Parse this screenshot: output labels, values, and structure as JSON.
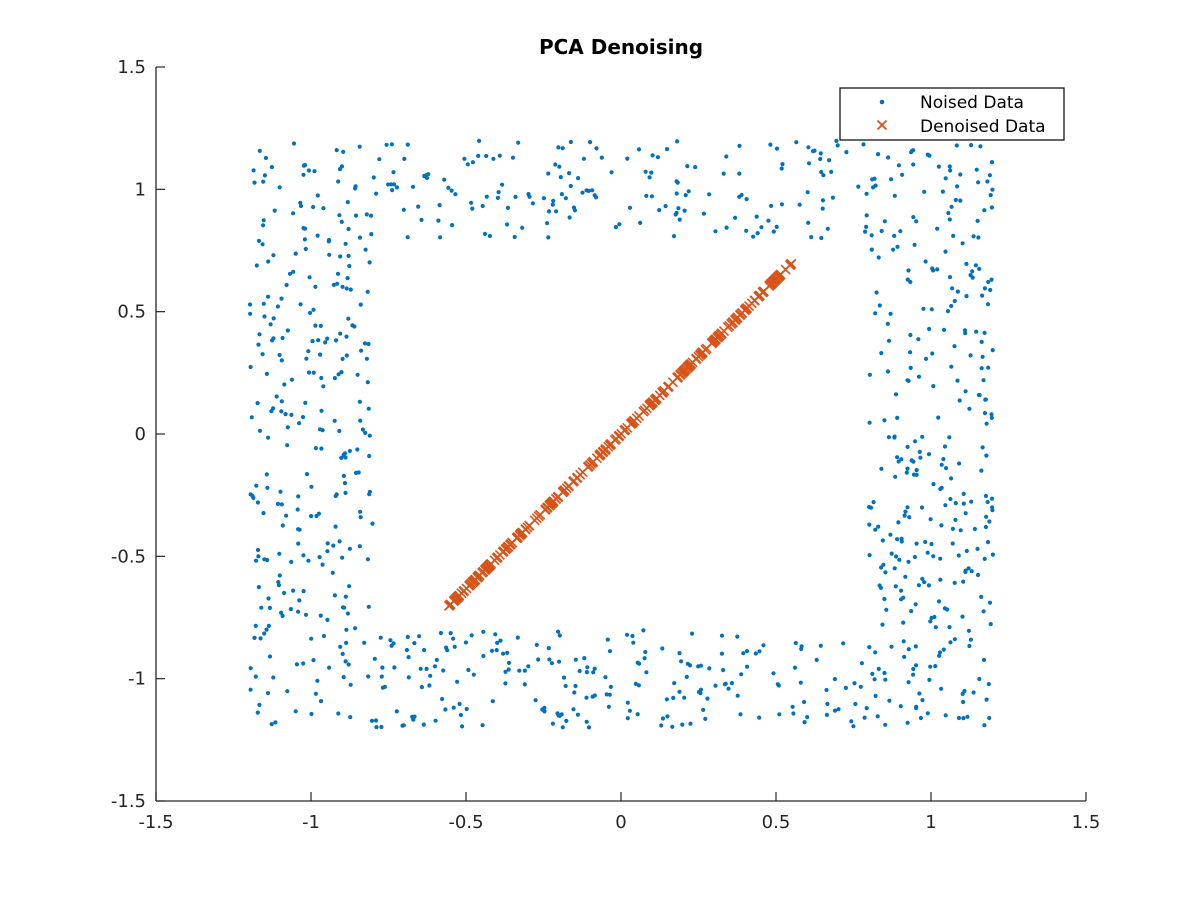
{
  "chart_data": {
    "type": "scatter",
    "title": "PCA Denoising",
    "xlabel": "",
    "ylabel": "",
    "xlim": [
      -1.5,
      1.5
    ],
    "ylim": [
      -1.5,
      1.5
    ],
    "grid": false,
    "legend_position": "top-right",
    "x_ticks": [
      -1.5,
      -1,
      -0.5,
      0,
      0.5,
      1,
      1.5
    ],
    "x_tick_labels": [
      "-1.5",
      "-1",
      "-0.5",
      "0",
      "0.5",
      "1",
      "1.5"
    ],
    "y_ticks": [
      -1.5,
      -1,
      -0.5,
      0,
      0.5,
      1,
      1.5
    ],
    "y_tick_labels": [
      "-1.5",
      "-1",
      "-0.5",
      "0",
      "0.5",
      "1",
      "1.5"
    ],
    "series": [
      {
        "name": "Noised Data",
        "marker": "dot",
        "color": "#0072BD",
        "description": "uniform noise in a square ring: |x|,|y| <= 1.2 with max(|x|,|y|) >= 0.8",
        "ring_outer": 1.2,
        "ring_inner": 0.8,
        "approx_count": 1000
      },
      {
        "name": "Denoised Data",
        "marker": "x",
        "color": "#D95319",
        "description": "points projected onto first principal component",
        "direction": [
          0.62,
          0.785
        ],
        "t_range": [
          -0.9,
          0.9
        ],
        "approx_count": 300
      }
    ]
  }
}
